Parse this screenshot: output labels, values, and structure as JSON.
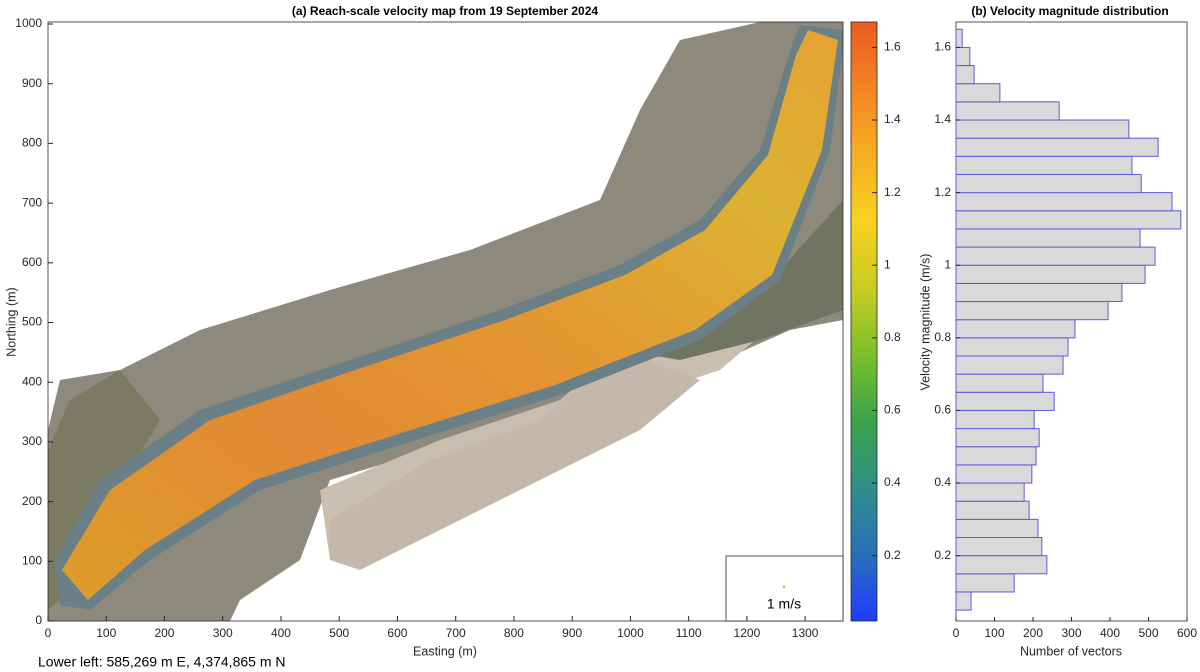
{
  "chart_data": [
    {
      "type": "map",
      "title": "(a) Reach-scale velocity map from 19 September 2024",
      "xlabel": "Easting (m)",
      "ylabel": "Northing (m)",
      "xlim": [
        0,
        1365
      ],
      "ylim": [
        0,
        1000
      ],
      "xticks": [
        0,
        100,
        200,
        300,
        400,
        500,
        600,
        700,
        800,
        900,
        1000,
        1100,
        1200,
        1300
      ],
      "yticks": [
        0,
        100,
        200,
        300,
        400,
        500,
        600,
        700,
        800,
        900,
        1000
      ],
      "colorbar": {
        "lim": [
          0.02,
          1.67
        ],
        "ticks": [
          0.2,
          0.4,
          0.6,
          0.8,
          1,
          1.2,
          1.4,
          1.6
        ],
        "colormap": [
          "#1e3cff",
          "#2a6fb8",
          "#2f8f8a",
          "#3aa34a",
          "#7cbf2a",
          "#c8cc22",
          "#f8d21f",
          "#f6ae22",
          "#f28522",
          "#ec5a22"
        ]
      },
      "scale_label": "1 m/s",
      "footnote": "Lower left: 585,269 m E, 4,374,865 m N"
    },
    {
      "type": "histogram",
      "orientation": "horizontal",
      "title": "(b) Velocity magnitude distribution",
      "xlabel": "Number of vectors",
      "ylabel": "Velocity magnitude (m/s)",
      "bins": [
        0.05,
        0.1,
        0.15,
        0.2,
        0.25,
        0.3,
        0.35,
        0.4,
        0.45,
        0.5,
        0.55,
        0.6,
        0.65,
        0.7,
        0.75,
        0.8,
        0.85,
        0.9,
        0.95,
        1.0,
        1.05,
        1.1,
        1.15,
        1.2,
        1.25,
        1.3,
        1.35,
        1.4,
        1.45,
        1.5,
        1.55,
        1.6,
        1.65
      ],
      "counts": [
        39,
        151,
        236,
        223,
        213,
        190,
        177,
        197,
        208,
        216,
        203,
        255,
        226,
        278,
        291,
        309,
        395,
        431,
        491,
        517,
        478,
        584,
        561,
        481,
        457,
        525,
        449,
        268,
        114,
        47,
        36,
        16
      ],
      "color": "#d9d9d9",
      "edgecolor": "#5b5bd6",
      "xlim": [
        0,
        600
      ],
      "ylim": [
        0.02,
        1.67
      ],
      "xticks": [
        0,
        100,
        200,
        300,
        400,
        500,
        600
      ],
      "yticks": [
        0.2,
        0.4,
        0.6,
        0.8,
        1,
        1.2,
        1.4,
        1.6
      ]
    }
  ]
}
